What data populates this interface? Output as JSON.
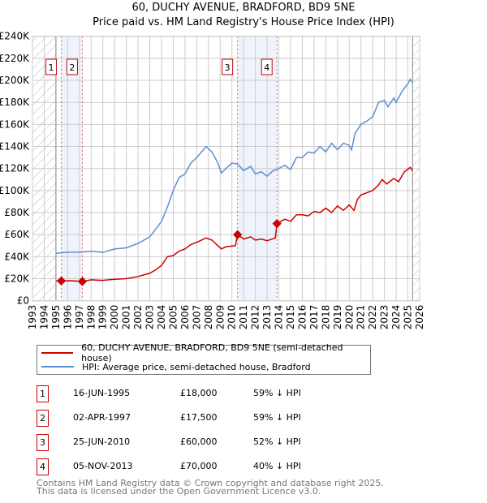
{
  "title": "60, DUCHY AVENUE, BRADFORD, BD9 5NE",
  "subtitle": "Price paid vs. HM Land Registry's House Price Index (HPI)",
  "colors": {
    "price": "#cc0000",
    "hpi": "#5b8fd1",
    "shade": "#eef3fc",
    "marker_border": "#cc0000"
  },
  "chart_data": {
    "type": "line",
    "xlim": [
      1993,
      2026
    ],
    "ylim": [
      0,
      240000
    ],
    "yticks": [
      0,
      20000,
      40000,
      60000,
      80000,
      100000,
      120000,
      140000,
      160000,
      180000,
      200000,
      220000,
      240000
    ],
    "ytick_labels": [
      "£0",
      "£20K",
      "£40K",
      "£60K",
      "£80K",
      "£100K",
      "£120K",
      "£140K",
      "£160K",
      "£180K",
      "£200K",
      "£220K",
      "£240K"
    ],
    "xticks": [
      "1993",
      "1994",
      "1995",
      "1996",
      "1997",
      "1998",
      "1999",
      "2000",
      "2001",
      "2002",
      "2003",
      "2004",
      "2005",
      "2006",
      "2007",
      "2008",
      "2009",
      "2010",
      "2011",
      "2012",
      "2013",
      "2014",
      "2015",
      "2016",
      "2017",
      "2018",
      "2019",
      "2020",
      "2021",
      "2022",
      "2023",
      "2024",
      "2025",
      "2026"
    ],
    "grid": true,
    "hatched_ranges": [
      [
        1993,
        1995
      ],
      [
        2025.4,
        2026
      ]
    ],
    "shaded_ranges": [
      [
        1995.46,
        1997.25
      ],
      [
        2010.48,
        2013.84
      ]
    ],
    "series": [
      {
        "name": "60, DUCHY AVENUE, BRADFORD, BD9 5NE (semi-detached house)",
        "color": "#cc0000",
        "points": [
          [
            1995.0,
            18000
          ],
          [
            1995.46,
            18000
          ],
          [
            1996.2,
            18200
          ],
          [
            1997.25,
            17500
          ],
          [
            1998,
            19000
          ],
          [
            1999,
            18500
          ],
          [
            2000,
            19500
          ],
          [
            2001,
            20000
          ],
          [
            2002,
            22000
          ],
          [
            2003,
            25000
          ],
          [
            2003.5,
            28000
          ],
          [
            2004,
            32000
          ],
          [
            2004.5,
            40000
          ],
          [
            2005,
            41000
          ],
          [
            2005.5,
            45000
          ],
          [
            2006,
            47000
          ],
          [
            2006.5,
            51000
          ],
          [
            2007,
            53000
          ],
          [
            2007.8,
            57000
          ],
          [
            2008.3,
            55000
          ],
          [
            2008.8,
            50000
          ],
          [
            2009.1,
            47000
          ],
          [
            2009.5,
            49000
          ],
          [
            2010.3,
            50000
          ],
          [
            2010.48,
            60000
          ],
          [
            2011,
            56000
          ],
          [
            2011.6,
            58000
          ],
          [
            2012,
            55000
          ],
          [
            2012.5,
            56000
          ],
          [
            2013,
            54500
          ],
          [
            2013.7,
            57000
          ],
          [
            2013.84,
            70000
          ],
          [
            2014.5,
            74000
          ],
          [
            2015,
            72000
          ],
          [
            2015.5,
            78000
          ],
          [
            2016,
            78000
          ],
          [
            2016.5,
            77000
          ],
          [
            2017,
            81000
          ],
          [
            2017.5,
            80000
          ],
          [
            2018,
            84000
          ],
          [
            2018.5,
            80000
          ],
          [
            2019,
            86000
          ],
          [
            2019.5,
            82000
          ],
          [
            2020,
            87000
          ],
          [
            2020.4,
            82000
          ],
          [
            2020.7,
            92000
          ],
          [
            2021,
            96000
          ],
          [
            2021.5,
            98000
          ],
          [
            2022,
            100000
          ],
          [
            2022.5,
            105000
          ],
          [
            2022.8,
            110000
          ],
          [
            2023.2,
            106000
          ],
          [
            2023.8,
            111000
          ],
          [
            2024.2,
            108000
          ],
          [
            2024.7,
            117000
          ],
          [
            2025.2,
            121000
          ],
          [
            2025.4,
            118000
          ]
        ]
      },
      {
        "name": "HPI: Average price, semi-detached house, Bradford",
        "color": "#5b8fd1",
        "points": [
          [
            1995.0,
            43000
          ],
          [
            1996,
            44000
          ],
          [
            1997,
            44000
          ],
          [
            1998,
            45000
          ],
          [
            1999,
            44000
          ],
          [
            2000,
            47000
          ],
          [
            2001,
            48000
          ],
          [
            2002,
            52000
          ],
          [
            2003,
            58000
          ],
          [
            2004,
            72000
          ],
          [
            2004.5,
            85000
          ],
          [
            2005,
            100000
          ],
          [
            2005.5,
            112000
          ],
          [
            2006,
            115000
          ],
          [
            2006.5,
            125000
          ],
          [
            2007,
            130000
          ],
          [
            2007.8,
            140000
          ],
          [
            2008.3,
            135000
          ],
          [
            2008.8,
            125000
          ],
          [
            2009.1,
            116000
          ],
          [
            2009.5,
            120000
          ],
          [
            2010,
            125000
          ],
          [
            2010.5,
            124000
          ],
          [
            2011,
            118000
          ],
          [
            2011.6,
            122000
          ],
          [
            2012,
            115000
          ],
          [
            2012.5,
            117000
          ],
          [
            2013,
            113000
          ],
          [
            2013.5,
            118000
          ],
          [
            2014,
            120000
          ],
          [
            2014.5,
            123000
          ],
          [
            2015,
            119000
          ],
          [
            2015.5,
            130000
          ],
          [
            2016,
            130000
          ],
          [
            2016.5,
            135000
          ],
          [
            2017,
            134000
          ],
          [
            2017.5,
            140000
          ],
          [
            2018,
            135000
          ],
          [
            2018.5,
            143000
          ],
          [
            2019,
            137000
          ],
          [
            2019.5,
            143000
          ],
          [
            2020,
            141000
          ],
          [
            2020.2,
            137000
          ],
          [
            2020.5,
            152000
          ],
          [
            2021,
            160000
          ],
          [
            2021.5,
            163000
          ],
          [
            2022,
            167000
          ],
          [
            2022.5,
            180000
          ],
          [
            2023,
            182000
          ],
          [
            2023.3,
            176000
          ],
          [
            2023.8,
            184000
          ],
          [
            2024,
            180000
          ],
          [
            2024.5,
            190000
          ],
          [
            2025,
            197000
          ],
          [
            2025.2,
            201000
          ],
          [
            2025.4,
            198000
          ]
        ]
      }
    ],
    "sales": [
      {
        "label": "1",
        "x": 1995.46,
        "y": 18000
      },
      {
        "label": "2",
        "x": 1997.25,
        "y": 17500
      },
      {
        "label": "3",
        "x": 2010.48,
        "y": 60000
      },
      {
        "label": "4",
        "x": 2013.84,
        "y": 70000
      }
    ]
  },
  "legend": [
    "60, DUCHY AVENUE, BRADFORD, BD9 5NE (semi-detached house)",
    "HPI: Average price, semi-detached house, Bradford"
  ],
  "transactions": [
    {
      "num": "1",
      "date": "16-JUN-1995",
      "price": "£18,000",
      "hpi": "59% ↓ HPI"
    },
    {
      "num": "2",
      "date": "02-APR-1997",
      "price": "£17,500",
      "hpi": "59% ↓ HPI"
    },
    {
      "num": "3",
      "date": "25-JUN-2010",
      "price": "£60,000",
      "hpi": "52% ↓ HPI"
    },
    {
      "num": "4",
      "date": "05-NOV-2013",
      "price": "£70,000",
      "hpi": "40% ↓ HPI"
    }
  ],
  "footer": [
    "Contains HM Land Registry data © Crown copyright and database right 2025.",
    "This data is licensed under the Open Government Licence v3.0."
  ]
}
